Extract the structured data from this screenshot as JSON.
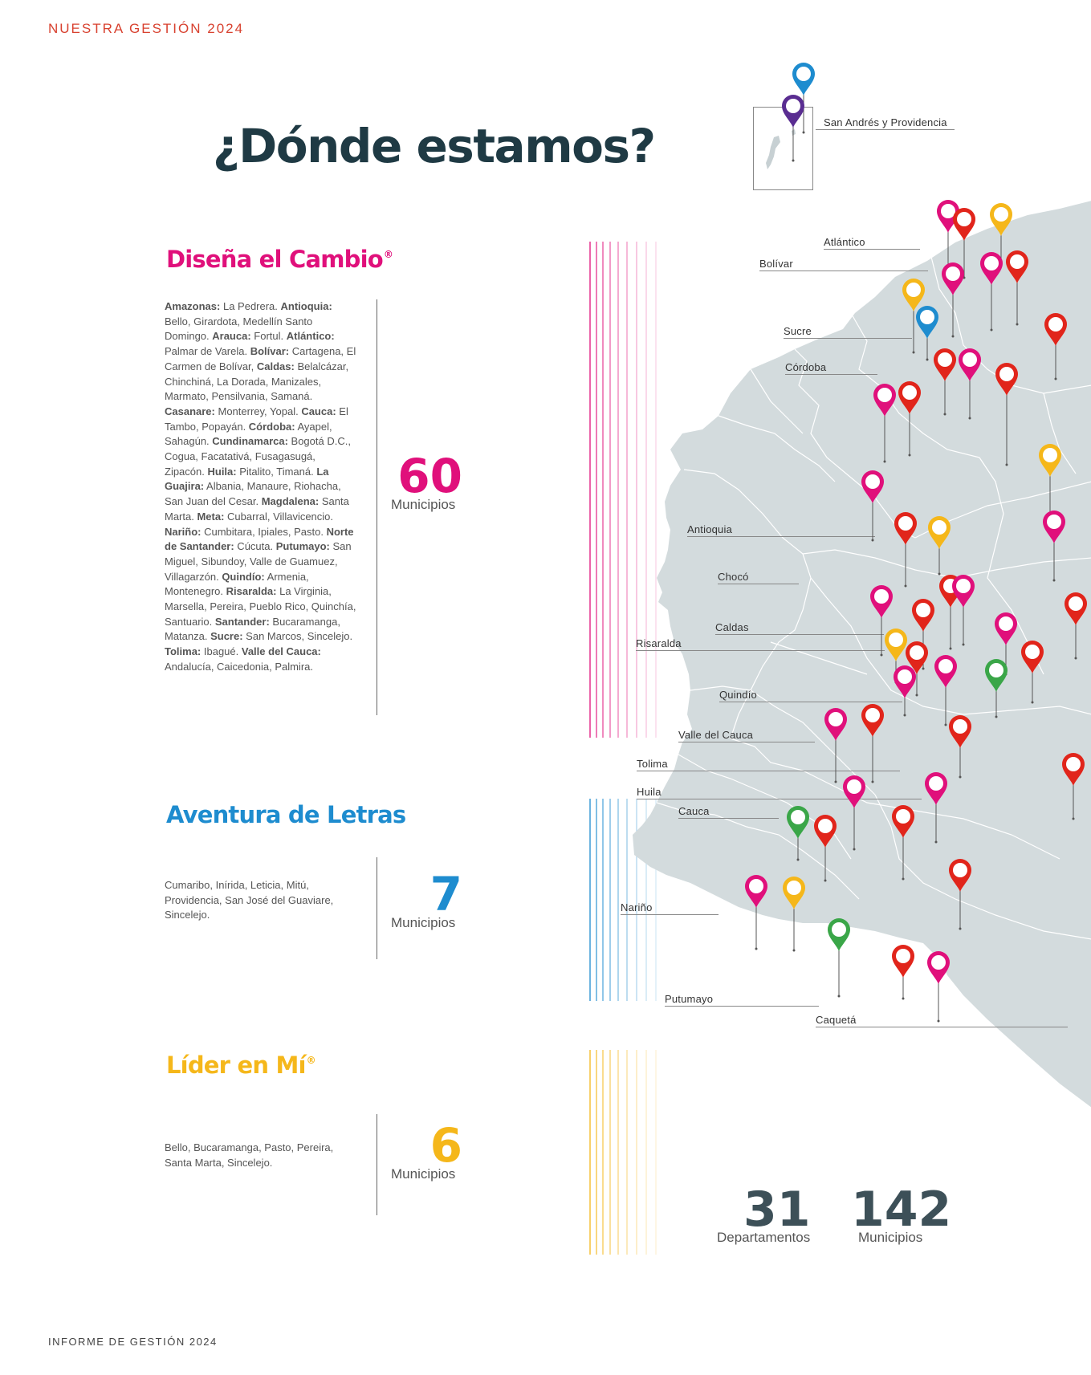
{
  "header": "NUESTRA GESTIÓN 2024",
  "footer": "INFORME DE GESTIÓN 2024",
  "title": "¿Dónde estamos?",
  "colors": {
    "disena": "#e0107b",
    "aventura": "#1e8ccf",
    "lider": "#f5b71a",
    "red": "#e1251b",
    "green": "#3aa648",
    "purple": "#5a2d91",
    "map_fill": "#d3dbdd"
  },
  "programs": {
    "disena": {
      "name": "Diseña el Cambio",
      "mark": "®",
      "count": "60",
      "count_label": "Municipios",
      "items": [
        {
          "dept": "Amazonas:",
          "towns": "La Pedrera."
        },
        {
          "dept": "Antioquia:",
          "towns": "Bello, Girardota, Medellín Santo Domingo."
        },
        {
          "dept": "Arauca:",
          "towns": "Fortul."
        },
        {
          "dept": "Atlántico:",
          "towns": "Palmar de Varela."
        },
        {
          "dept": "Bolívar:",
          "towns": "Cartagena, El Carmen de Bolívar,"
        },
        {
          "dept": "Caldas:",
          "towns": "Belalcázar, Chinchiná, La Dorada, Manizales, Marmato, Pensilvania, Samaná."
        },
        {
          "dept": "Casanare:",
          "towns": "Monterrey, Yopal."
        },
        {
          "dept": "Cauca:",
          "towns": "El Tambo, Popayán."
        },
        {
          "dept": "Córdoba:",
          "towns": "Ayapel, Sahagún."
        },
        {
          "dept": "Cundinamarca:",
          "towns": "Bogotá D.C., Cogua, Facatativá, Fusagasugá, Zipacón."
        },
        {
          "dept": "Huila:",
          "towns": "Pitalito, Timaná."
        },
        {
          "dept": "La Guajira:",
          "towns": "Albania, Manaure, Riohacha, San Juan del Cesar."
        },
        {
          "dept": "Magdalena:",
          "towns": "Santa Marta."
        },
        {
          "dept": "Meta:",
          "towns": "Cubarral, Villavicencio."
        },
        {
          "dept": "Nariño:",
          "towns": "Cumbitara, Ipiales, Pasto."
        },
        {
          "dept": "Norte de Santander:",
          "towns": "Cúcuta."
        },
        {
          "dept": "Putumayo:",
          "towns": "San Miguel, Sibundoy, Valle de Guamuez, Villagarzón."
        },
        {
          "dept": "Quindío:",
          "towns": "Armenia, Montenegro."
        },
        {
          "dept": "Risaralda:",
          "towns": "La Virginia, Marsella, Pereira, Pueblo Rico, Quinchía, Santuario."
        },
        {
          "dept": "Santander:",
          "towns": "Bucaramanga, Matanza."
        },
        {
          "dept": "Sucre:",
          "towns": "San Marcos, Sincelejo."
        },
        {
          "dept": "Tolima:",
          "towns": "Ibagué."
        },
        {
          "dept": "Valle del Cauca:",
          "towns": "Andalucía, Caicedonia, Palmira."
        }
      ]
    },
    "aventura": {
      "name": "Aventura de Letras",
      "count": "7",
      "count_label": "Municipios",
      "text": "Cumaribo, Inírida, Leticia, Mitú, Providencia, San José del Guaviare, Sincelejo."
    },
    "lider": {
      "name": "Líder en Mí",
      "mark": "®",
      "count": "6",
      "count_label": "Municipios",
      "text": "Bello, Bucaramanga, Pasto, Pereira, Santa Marta, Sincelejo."
    }
  },
  "map_labels": [
    "San Andrés y Providencia",
    "Atlántico",
    "Bolívar",
    "Sucre",
    "Córdoba",
    "Antioquia",
    "Chocó",
    "Caldas",
    "Risaralda",
    "Quindío",
    "Valle del Cauca",
    "Tolima",
    "Huila",
    "Cauca",
    "Nariño",
    "Putumayo",
    "Caquetá"
  ],
  "stats": {
    "departments": "31",
    "departments_label": "Departamentos",
    "municipalities": "142",
    "municipalities_label": "Municipios"
  }
}
